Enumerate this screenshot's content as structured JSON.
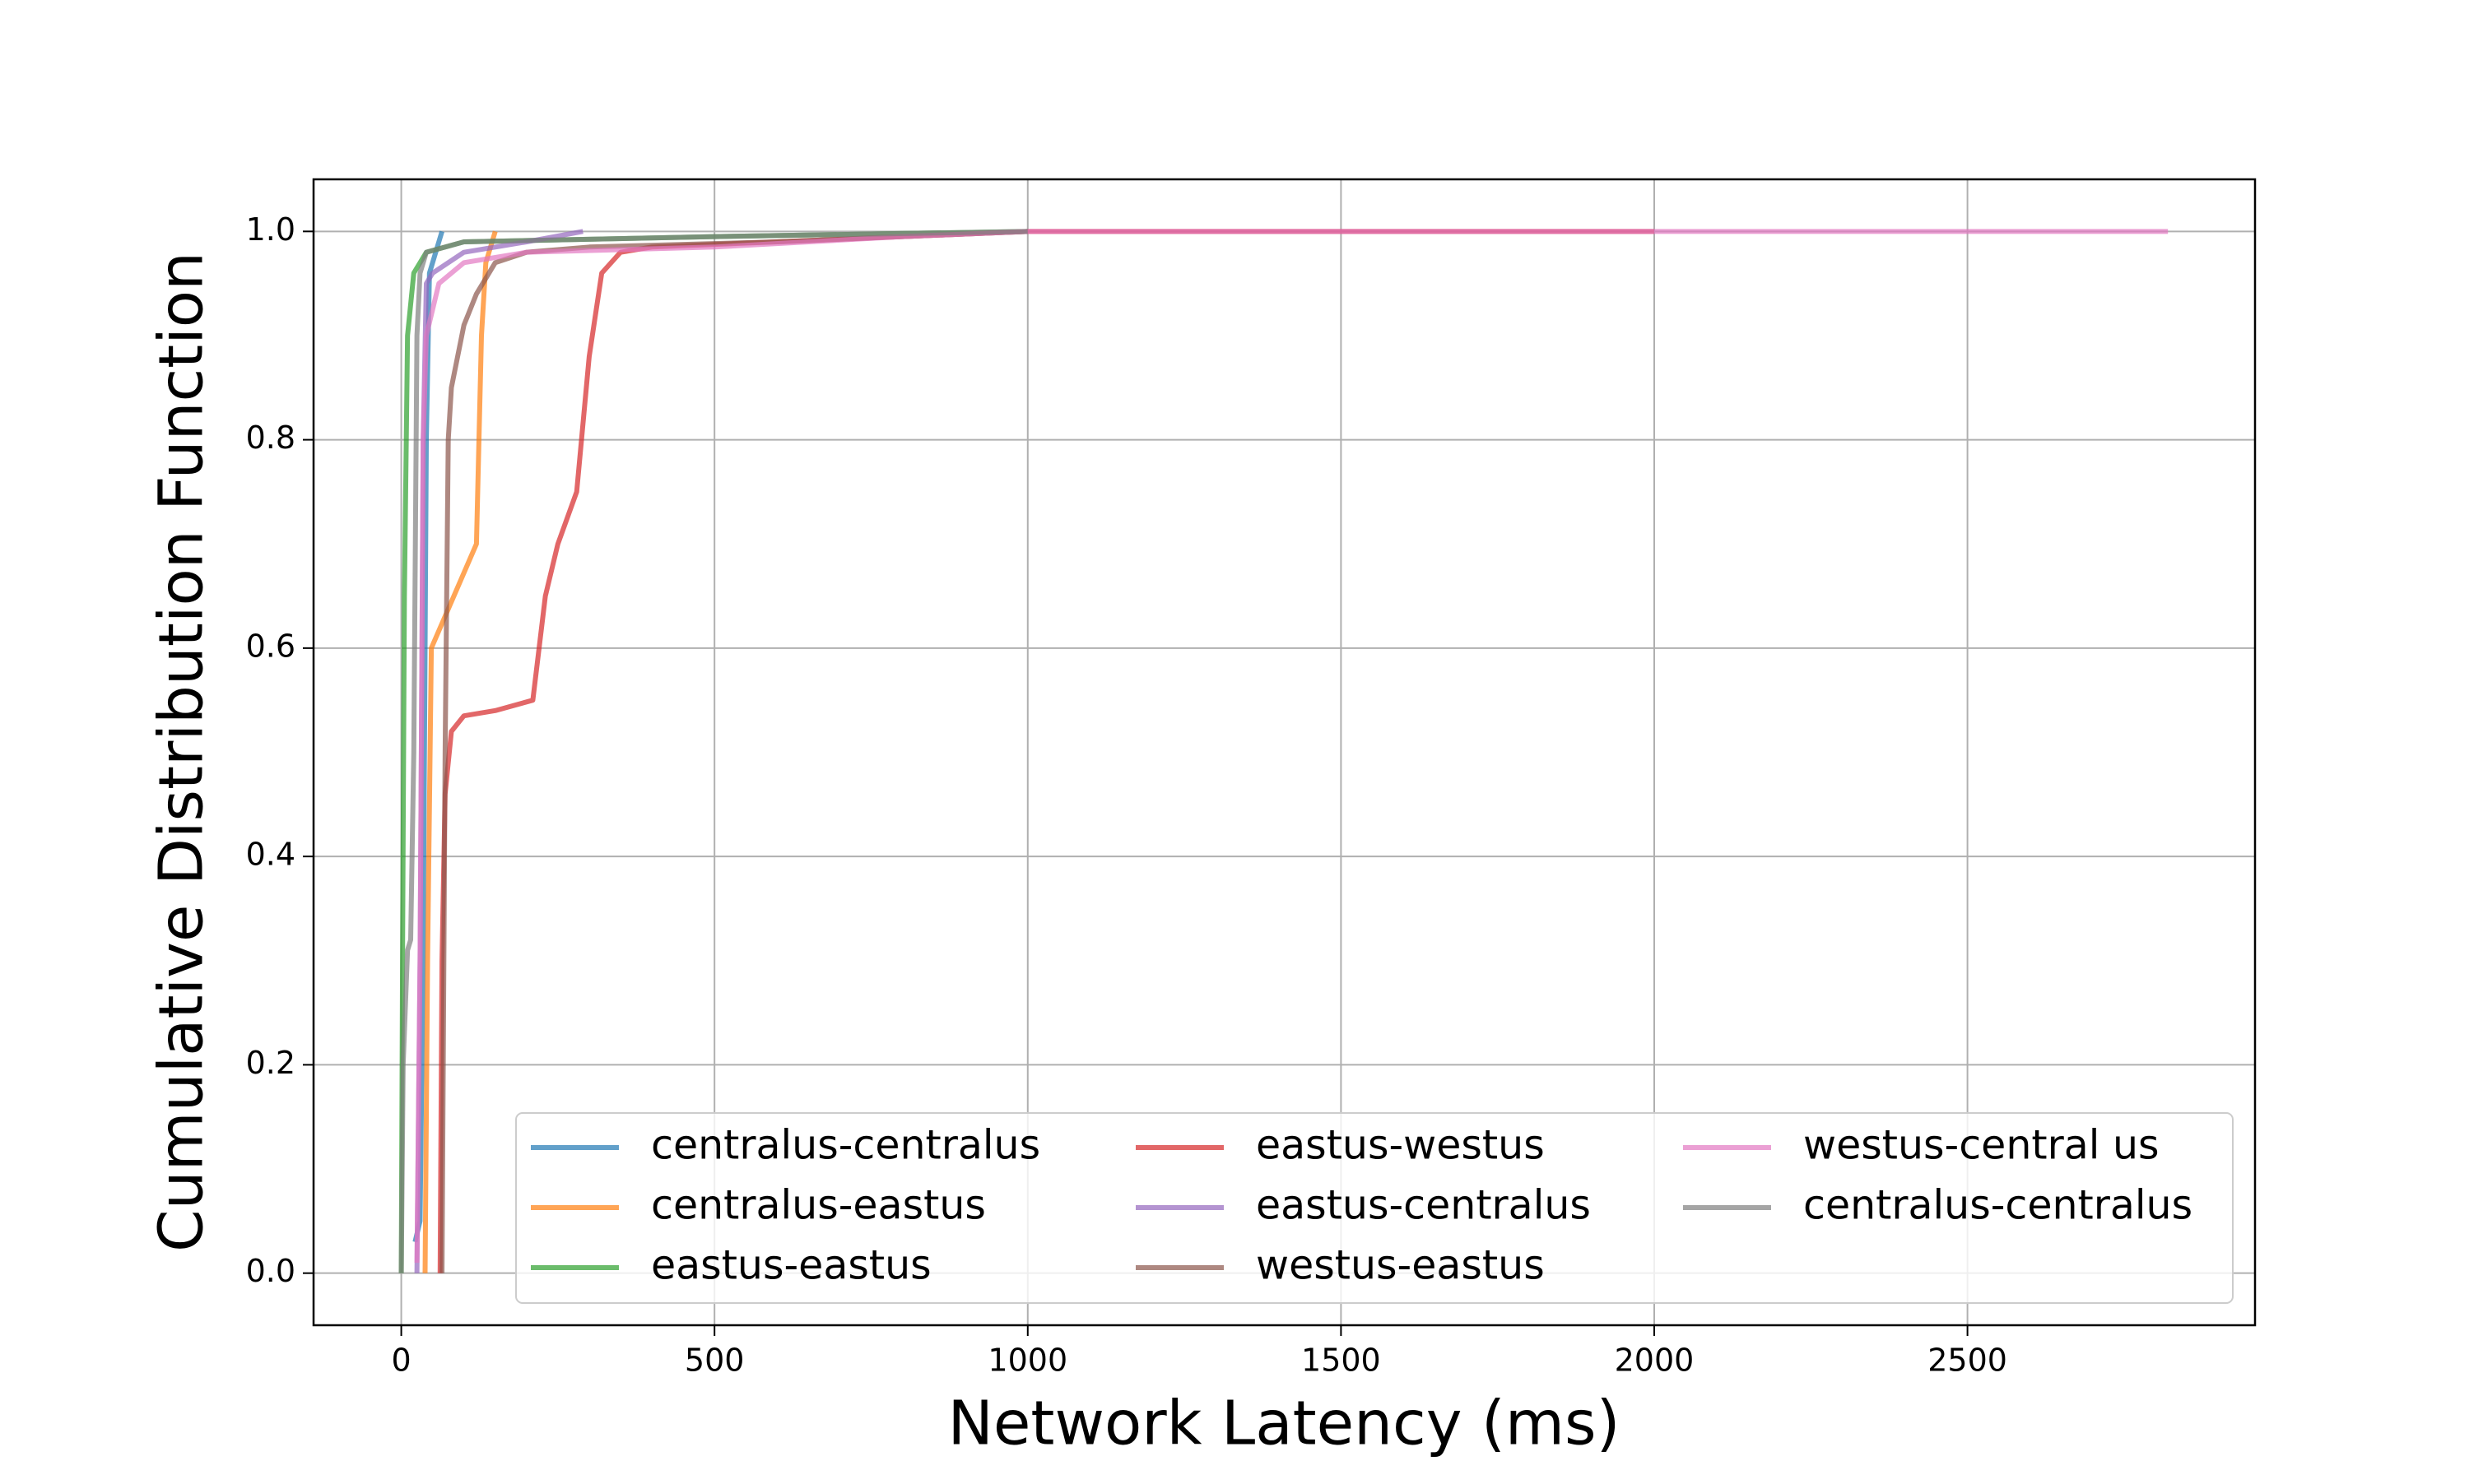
{
  "chart_data": {
    "type": "line",
    "x_label": "Network Latency (ms)",
    "y_label": "Cumulative Distribution Function",
    "xlim": [
      -140,
      2959
    ],
    "ylim": [
      -0.05,
      1.05
    ],
    "xticks": [
      0,
      500,
      1000,
      1500,
      2000,
      2500
    ],
    "yticks": [
      {
        "value": 0,
        "label": "0.0"
      },
      0.2,
      0.4,
      0.6,
      0.8,
      {
        "value": 1,
        "label": "1.0"
      }
    ],
    "grid": true,
    "alpha": 0.7,
    "legend_position": "lower right",
    "legend_columns": 3,
    "series": [
      {
        "name": "centralus-centralus",
        "color": "#1f77b4",
        "x": [
          22,
          30,
          35,
          40,
          45,
          55,
          65
        ],
        "values": [
          0.03,
          0.05,
          0.3,
          0.8,
          0.96,
          0.98,
          1.0
        ]
      },
      {
        "name": "centralus-eastus",
        "color": "#ff7f0e",
        "x": [
          38,
          42,
          48,
          120,
          128,
          135,
          150
        ],
        "values": [
          0,
          0.3,
          0.6,
          0.7,
          0.9,
          0.97,
          1.0
        ]
      },
      {
        "name": "eastus-eastus",
        "color": "#2ca02c",
        "x": [
          0,
          2,
          5,
          10,
          20,
          40,
          100,
          500,
          1000
        ],
        "values": [
          0,
          0.3,
          0.65,
          0.9,
          0.96,
          0.98,
          0.99,
          0.995,
          1.0
        ]
      },
      {
        "name": "eastus-westus",
        "color": "#d62728",
        "x": [
          62,
          65,
          70,
          80,
          100,
          150,
          210,
          230,
          250,
          280,
          300,
          320,
          350,
          400,
          800,
          1000,
          2000
        ],
        "values": [
          0,
          0.3,
          0.46,
          0.52,
          0.535,
          0.54,
          0.55,
          0.65,
          0.7,
          0.75,
          0.88,
          0.96,
          0.98,
          0.985,
          0.995,
          1.0,
          1.0
        ]
      },
      {
        "name": "eastus-centralus",
        "color": "#9467bd",
        "x": [
          25,
          30,
          35,
          40,
          50,
          100,
          200,
          290
        ],
        "values": [
          0,
          0.3,
          0.8,
          0.95,
          0.96,
          0.98,
          0.99,
          1.0
        ]
      },
      {
        "name": "westus-eastus",
        "color": "#8c564b",
        "x": [
          65,
          70,
          75,
          80,
          100,
          120,
          150,
          200,
          300,
          600,
          1000
        ],
        "values": [
          0,
          0.5,
          0.8,
          0.85,
          0.91,
          0.94,
          0.97,
          0.98,
          0.985,
          0.99,
          1.0
        ]
      },
      {
        "name": "westus-central us",
        "color": "#e377c2",
        "x": [
          25,
          30,
          35,
          40,
          60,
          100,
          200,
          500,
          800,
          1000,
          2000,
          2820
        ],
        "values": [
          0.01,
          0.3,
          0.8,
          0.9,
          0.95,
          0.97,
          0.98,
          0.985,
          0.995,
          1.0,
          1.0,
          1.0
        ]
      },
      {
        "name": "centralus-centralus",
        "color": "#7f7f7f",
        "x": [
          0,
          3,
          10,
          15,
          20,
          25,
          30,
          40,
          100,
          500,
          1000
        ],
        "values": [
          0,
          0.2,
          0.31,
          0.32,
          0.5,
          0.9,
          0.96,
          0.98,
          0.99,
          0.995,
          1.0
        ]
      }
    ]
  }
}
